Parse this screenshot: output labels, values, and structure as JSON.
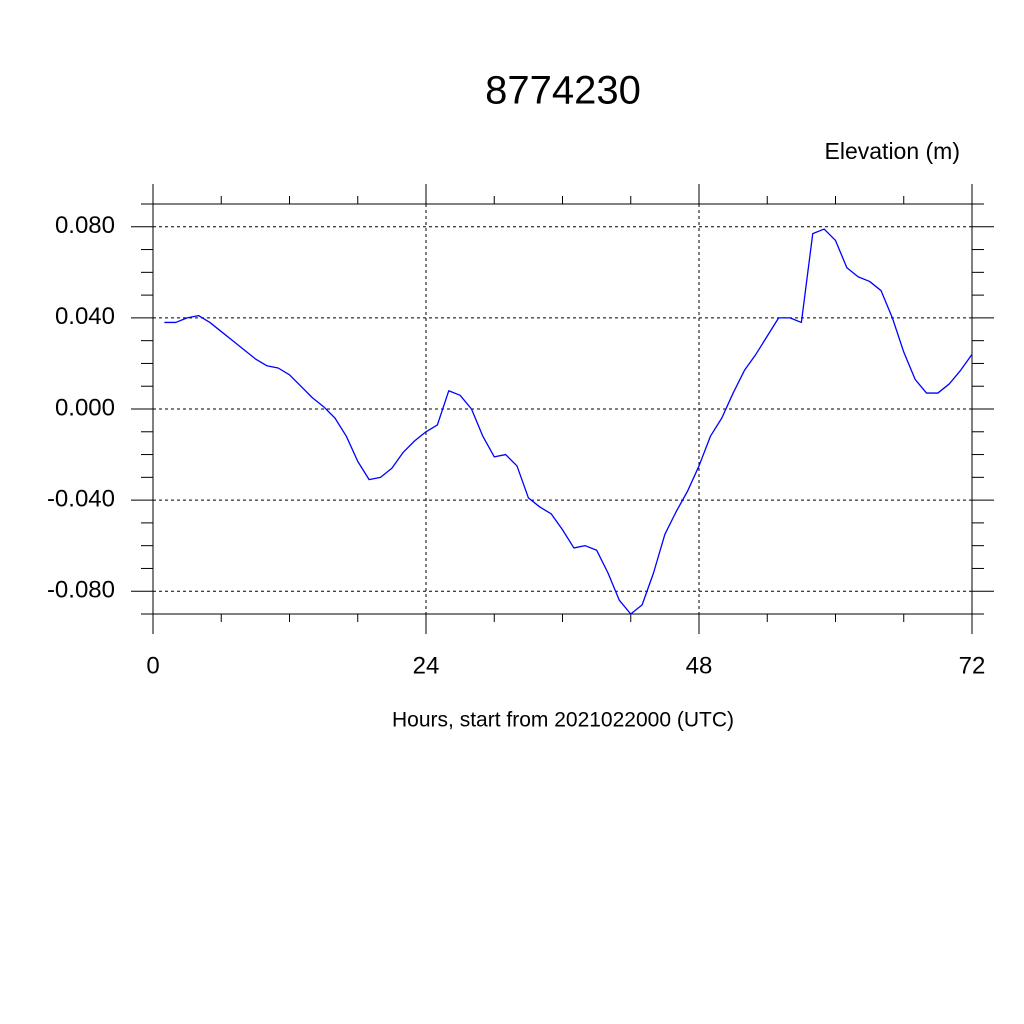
{
  "chart_data": {
    "type": "line",
    "title": "8774230",
    "ylabel": "Elevation (m)",
    "xlabel": "Hours, start from 2021022000 (UTC)",
    "x": [
      1,
      2,
      3,
      4,
      5,
      6,
      7,
      8,
      9,
      10,
      11,
      12,
      13,
      14,
      15,
      16,
      17,
      18,
      19,
      20,
      21,
      22,
      23,
      24,
      25,
      26,
      27,
      28,
      29,
      30,
      31,
      32,
      33,
      34,
      35,
      36,
      37,
      38,
      39,
      40,
      41,
      42,
      43,
      44,
      45,
      46,
      47,
      48,
      49,
      50,
      51,
      52,
      53,
      54,
      55,
      56,
      57,
      58,
      59,
      60,
      61,
      62,
      63,
      64,
      65,
      66,
      67,
      68,
      69,
      70,
      71,
      72
    ],
    "values": [
      0.038,
      0.038,
      0.04,
      0.041,
      0.038,
      0.034,
      0.03,
      0.026,
      0.022,
      0.019,
      0.018,
      0.015,
      0.01,
      0.005,
      0.001,
      -0.004,
      -0.012,
      -0.023,
      -0.031,
      -0.03,
      -0.026,
      -0.019,
      -0.014,
      -0.01,
      -0.007,
      0.008,
      0.006,
      0.0,
      -0.012,
      -0.021,
      -0.02,
      -0.025,
      -0.039,
      -0.043,
      -0.046,
      -0.053,
      -0.061,
      -0.06,
      -0.062,
      -0.072,
      -0.084,
      -0.09,
      -0.086,
      -0.072,
      -0.055,
      -0.045,
      -0.036,
      -0.025,
      -0.012,
      -0.004,
      0.007,
      0.017,
      0.024,
      0.032,
      0.04,
      0.04,
      0.038,
      0.077,
      0.079,
      0.074,
      0.062,
      0.058,
      0.056,
      0.052,
      0.04,
      0.025,
      0.013,
      0.007,
      0.007,
      0.011,
      0.017,
      0.024
    ],
    "color": "#0000ff",
    "xlim": [
      0,
      72
    ],
    "xticks": [
      0,
      24,
      48,
      72
    ],
    "xminorticks": [
      6,
      12,
      18,
      30,
      36,
      42,
      54,
      60,
      66
    ],
    "ylim": [
      -0.09,
      0.09
    ],
    "yticks": [
      {
        "value": -0.08,
        "label": "-0.080"
      },
      {
        "value": -0.04,
        "label": "-0.040"
      },
      {
        "value": 0,
        "label": "0.000"
      },
      {
        "value": 0.04,
        "label": "0.040"
      },
      {
        "value": 0.08,
        "label": "0.080"
      }
    ],
    "yminorticks": [
      -0.09,
      -0.07,
      -0.06,
      -0.05,
      -0.03,
      -0.02,
      -0.01,
      0.01,
      0.02,
      0.03,
      0.05,
      0.06,
      0.07,
      0.09
    ],
    "grid": true
  }
}
